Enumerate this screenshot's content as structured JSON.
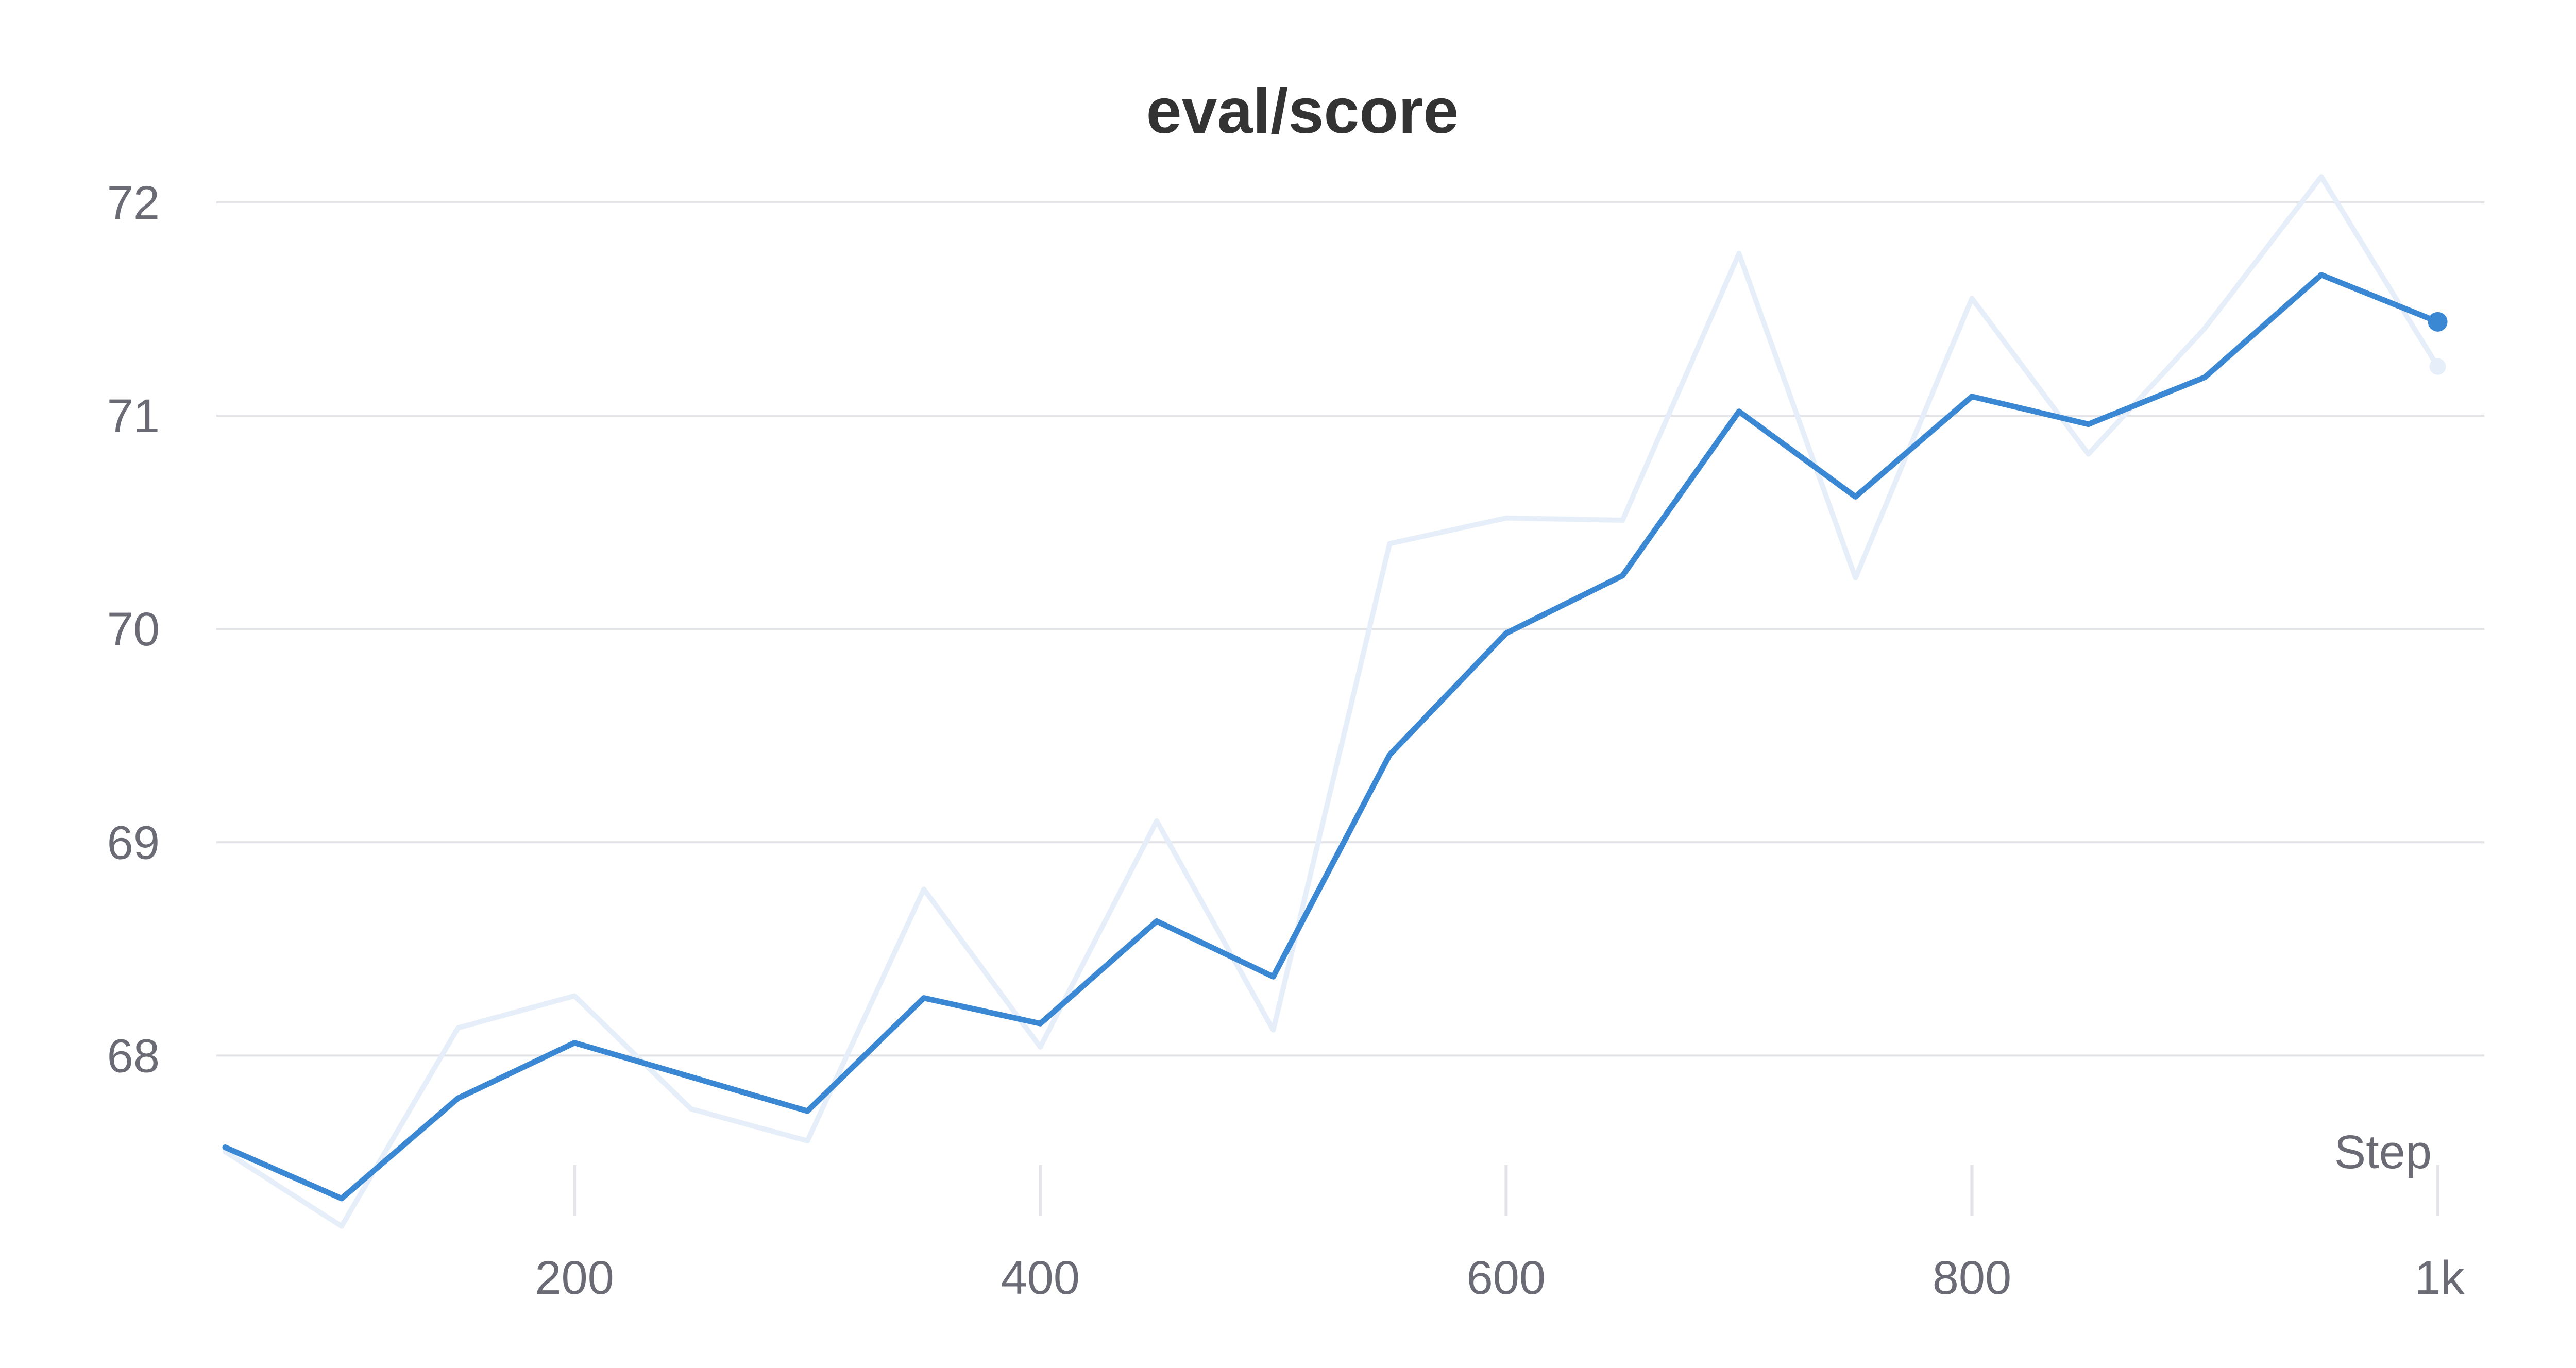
{
  "chart_data": {
    "type": "line",
    "title": "eval/score",
    "xlabel": "Step",
    "ylabel": "",
    "xlim": [
      50,
      1020
    ],
    "ylim": [
      67.25,
      72.35
    ],
    "x_ticks": [
      200,
      400,
      600,
      800,
      1000
    ],
    "x_tick_labels": [
      "200",
      "400",
      "600",
      "800",
      "1k"
    ],
    "y_ticks": [
      68,
      69,
      70,
      71,
      72
    ],
    "y_tick_labels": [
      "68",
      "69",
      "70",
      "71",
      "72"
    ],
    "grid": {
      "horizontal": true,
      "vertical": false
    },
    "legend": "none",
    "series": [
      {
        "role": "raw",
        "color": "#e6eff9",
        "x": [
          50,
          100,
          150,
          200,
          250,
          300,
          350,
          400,
          450,
          500,
          550,
          600,
          650,
          700,
          750,
          800,
          850,
          900,
          950,
          1000
        ],
        "y": [
          67.55,
          67.2,
          68.13,
          68.28,
          67.75,
          67.6,
          68.78,
          68.04,
          69.1,
          68.12,
          70.4,
          70.52,
          70.51,
          71.76,
          70.24,
          71.55,
          70.82,
          71.41,
          72.12,
          71.23
        ]
      },
      {
        "role": "smoothed",
        "color": "#3a87d4",
        "x": [
          50,
          100,
          150,
          200,
          250,
          300,
          350,
          400,
          450,
          500,
          550,
          600,
          650,
          700,
          750,
          800,
          850,
          900,
          950,
          1000
        ],
        "y": [
          67.57,
          67.33,
          67.8,
          68.06,
          67.9,
          67.74,
          68.27,
          68.15,
          68.63,
          68.37,
          69.41,
          69.98,
          70.25,
          71.02,
          70.62,
          71.09,
          70.96,
          71.18,
          71.66,
          71.44
        ]
      }
    ]
  }
}
